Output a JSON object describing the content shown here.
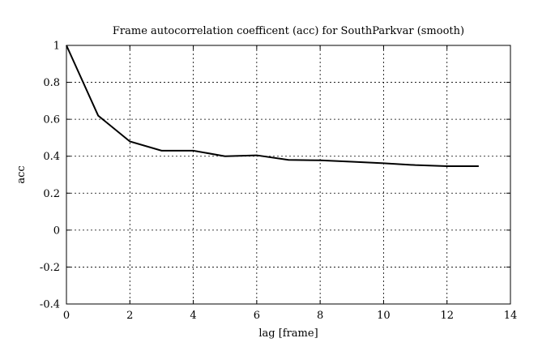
{
  "chart_data": {
    "type": "line",
    "title": "Frame autocorrelation coefficent (acc) for SouthParkvar (smooth)",
    "xlabel": "lag [frame]",
    "ylabel": "acc",
    "xlim": [
      0,
      14
    ],
    "ylim": [
      -0.4,
      1
    ],
    "xticks": [
      0,
      2,
      4,
      6,
      8,
      10,
      12,
      14
    ],
    "yticks": [
      -0.4,
      -0.2,
      0,
      0.2,
      0.4,
      0.6,
      0.8,
      1
    ],
    "grid": true,
    "legend": "none",
    "x": [
      0,
      1,
      2,
      3,
      4,
      5,
      6,
      7,
      8,
      9,
      10,
      11,
      12,
      13
    ],
    "series": [
      {
        "values": [
          1.0,
          0.62,
          0.48,
          0.43,
          0.43,
          0.4,
          0.405,
          0.38,
          0.378,
          0.37,
          0.362,
          0.352,
          0.346,
          0.346
        ],
        "color": "#000000"
      }
    ]
  }
}
